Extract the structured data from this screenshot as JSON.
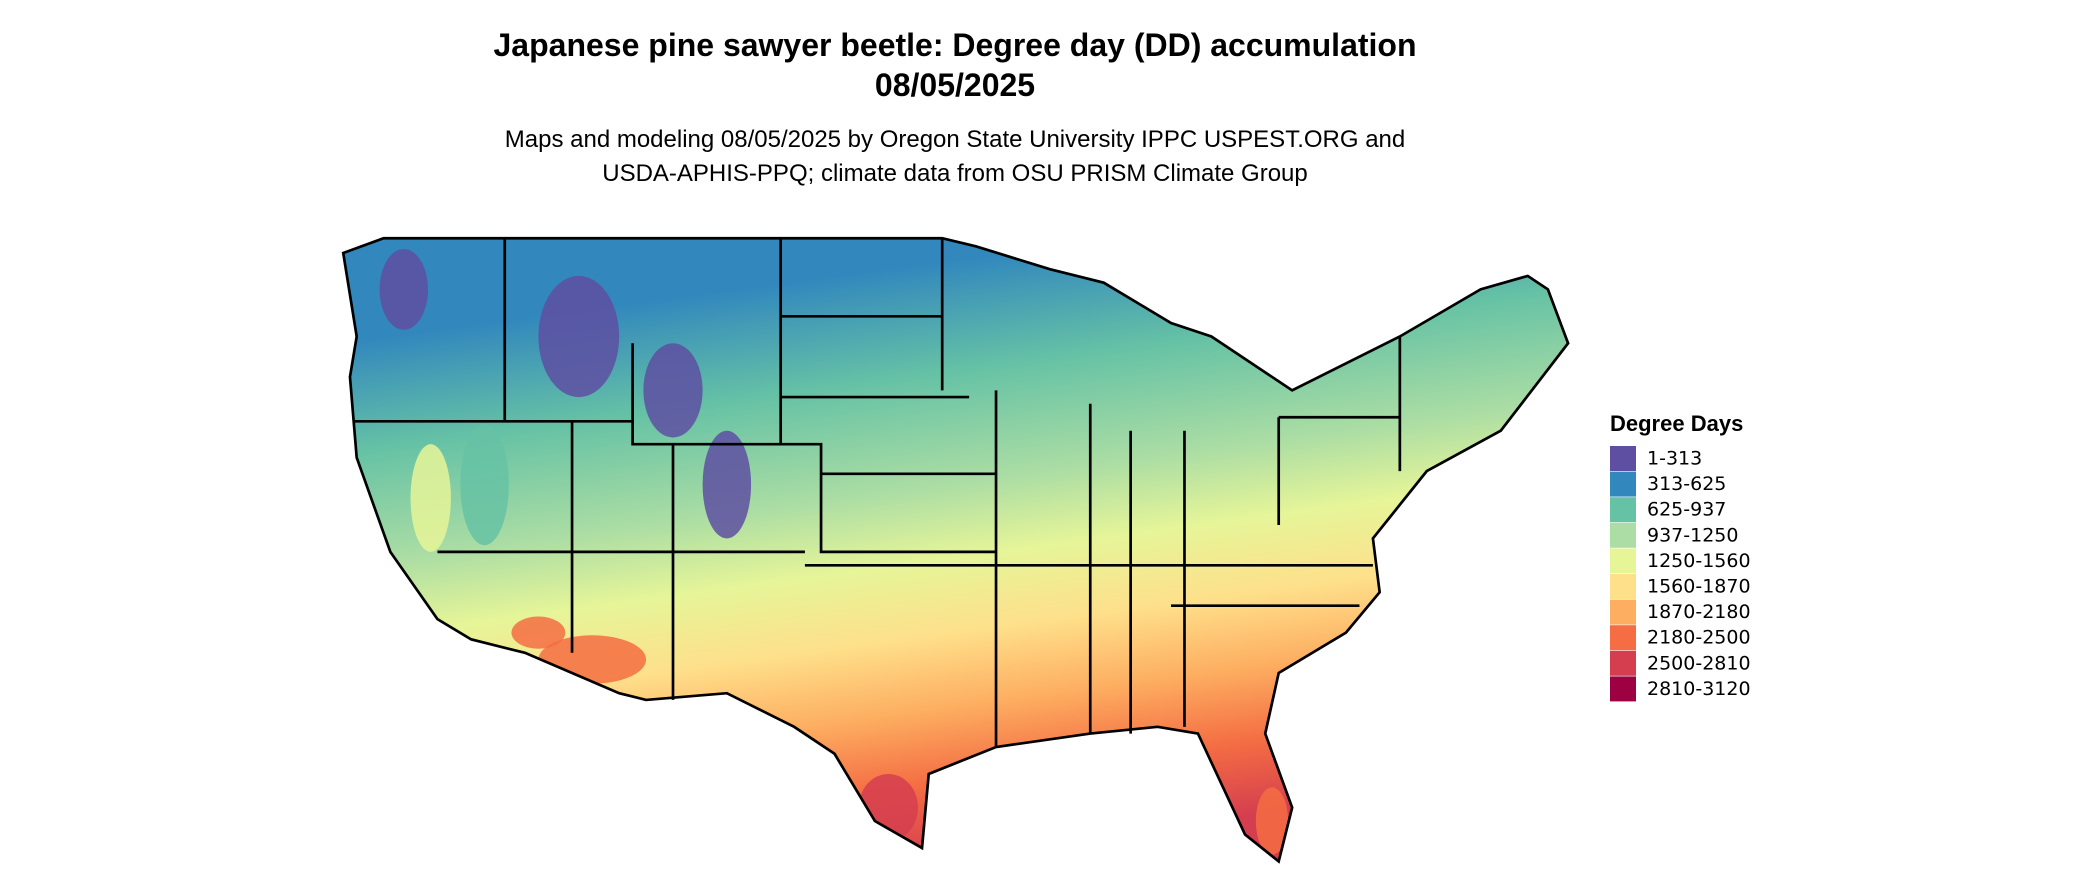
{
  "title": {
    "line1": "Japanese pine sawyer beetle: Degree day (DD) accumulation",
    "line2": "08/05/2025"
  },
  "subtitle": {
    "line1": "Maps and modeling 08/05/2025 by Oregon State University IPPC USPEST.ORG and",
    "line2": "USDA-APHIS-PPQ; climate data from OSU PRISM Climate Group"
  },
  "legend": {
    "title": "Degree Days",
    "items": [
      {
        "label": "1-313",
        "color": "#5e4fa2"
      },
      {
        "label": "313-625",
        "color": "#3288bd"
      },
      {
        "label": "625-937",
        "color": "#66c2a5"
      },
      {
        "label": "937-1250",
        "color": "#abdda4"
      },
      {
        "label": "1250-1560",
        "color": "#e6f598"
      },
      {
        "label": "1560-1870",
        "color": "#fee08b"
      },
      {
        "label": "1870-2180",
        "color": "#fdae61"
      },
      {
        "label": "2180-2500",
        "color": "#f46d43"
      },
      {
        "label": "2500-2810",
        "color": "#d53e4f"
      },
      {
        "label": "2810-3120",
        "color": "#9e0142"
      }
    ]
  }
}
